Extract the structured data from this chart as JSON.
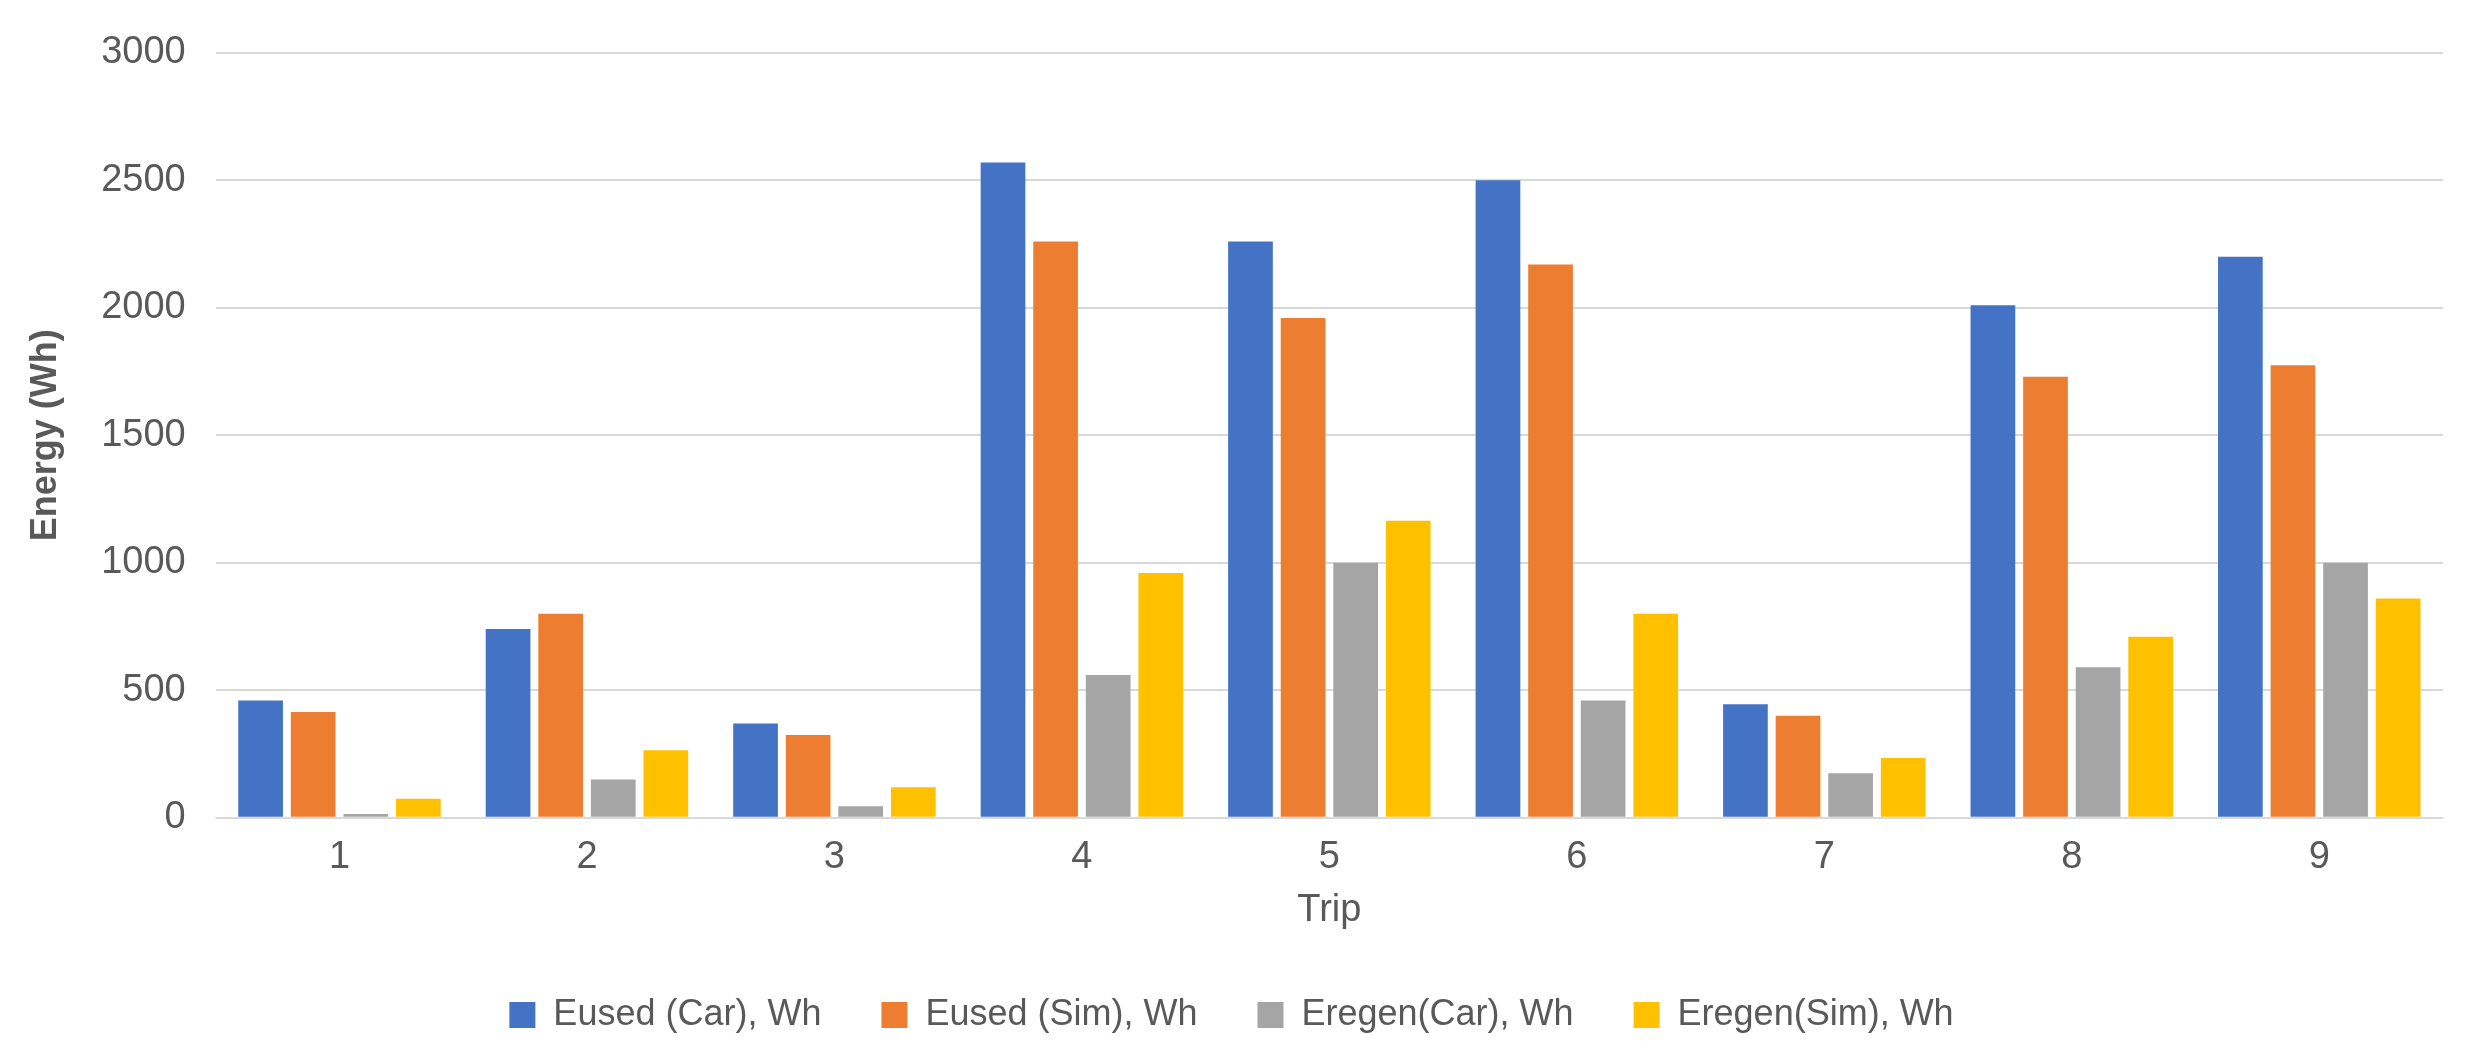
{
  "chart_data": {
    "type": "bar",
    "xlabel": "Trip",
    "ylabel": "Energy (Wh)",
    "categories": [
      "1",
      "2",
      "3",
      "4",
      "5",
      "6",
      "7",
      "8",
      "9"
    ],
    "series": [
      {
        "name": "Eused (Car), Wh",
        "color": "#4472c4",
        "values": [
          460,
          740,
          370,
          2570,
          2260,
          2500,
          445,
          2010,
          2200
        ]
      },
      {
        "name": "Eused (Sim), Wh",
        "color": "#ed7d31",
        "values": [
          415,
          800,
          325,
          2260,
          1960,
          2170,
          400,
          1730,
          1775
        ]
      },
      {
        "name": "Eregen(Car), Wh",
        "color": "#a5a5a5",
        "values": [
          15,
          150,
          45,
          560,
          1000,
          460,
          175,
          590,
          1000
        ]
      },
      {
        "name": "Eregen(Sim), Wh",
        "color": "#ffc000",
        "values": [
          75,
          265,
          120,
          960,
          1165,
          800,
          235,
          710,
          860
        ]
      }
    ],
    "ylim": [
      0,
      3000
    ],
    "yticks": [
      0,
      500,
      1000,
      1500,
      2000,
      2500,
      3000
    ],
    "grid": "y",
    "legend": "bottom"
  }
}
